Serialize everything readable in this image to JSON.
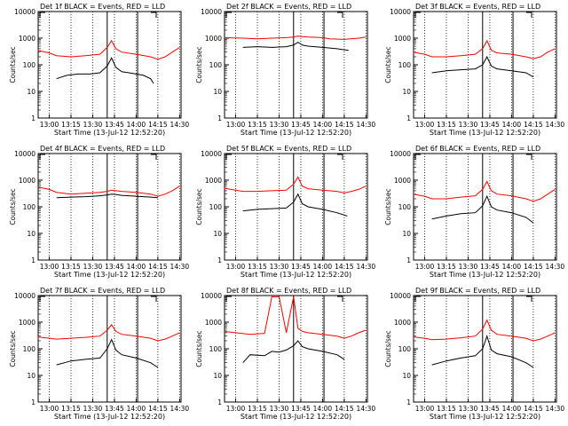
{
  "colors": {
    "events": "#000000",
    "lld": "#ff0000",
    "axis": "#000000"
  },
  "chart_data": {
    "type": "line",
    "scale_y": "log",
    "ylim": [
      1,
      10000
    ],
    "yticks": [
      "1",
      "10",
      "100",
      "1000",
      "10000"
    ],
    "xticks": [
      "13:00",
      "13:15",
      "13:30",
      "13:45",
      "14:00",
      "14:15",
      "14:30"
    ],
    "xlabel": "Start Time (13-Jul-12 12:52:20)",
    "ylabel": "Counts/sec",
    "markers": [
      "13:40",
      "14:01"
    ],
    "panels": [
      {
        "title": "Det 1f BLACK = Events, RED = LLD",
        "series": [
          {
            "name": "Events",
            "x": [
              "13:05",
              "13:12",
              "13:20",
              "13:28",
              "13:35",
              "13:40",
              "13:43",
              "13:46",
              "13:50",
              "13:55",
              "14:00",
              "14:05",
              "14:10",
              "14:12"
            ],
            "y": [
              30,
              40,
              45,
              45,
              50,
              90,
              180,
              80,
              55,
              50,
              45,
              40,
              30,
              20
            ]
          },
          {
            "name": "LLD",
            "x": [
              "12:52",
              "13:00",
              "13:05",
              "13:15",
              "13:25",
              "13:35",
              "13:40",
              "13:43",
              "13:46",
              "13:50",
              "14:00",
              "14:10",
              "14:15",
              "14:20",
              "14:25",
              "14:30"
            ],
            "y": [
              350,
              280,
              220,
              200,
              220,
              250,
              450,
              800,
              400,
              300,
              250,
              200,
              160,
              200,
              300,
              450
            ]
          }
        ]
      },
      {
        "title": "Det 2f BLACK = Events, RED = LLD",
        "series": [
          {
            "name": "Events",
            "x": [
              "13:05",
              "13:15",
              "13:25",
              "13:35",
              "13:40",
              "13:43",
              "13:46",
              "13:50",
              "14:00",
              "14:10",
              "14:18"
            ],
            "y": [
              450,
              480,
              450,
              480,
              550,
              700,
              550,
              500,
              450,
              400,
              350
            ]
          },
          {
            "name": "LLD",
            "x": [
              "12:52",
              "13:05",
              "13:15",
              "13:25",
              "13:35",
              "13:40",
              "13:43",
              "13:46",
              "13:50",
              "14:00",
              "14:05",
              "14:15",
              "14:25",
              "14:30"
            ],
            "y": [
              1050,
              1000,
              950,
              1000,
              1050,
              1100,
              1200,
              1150,
              1100,
              1050,
              950,
              900,
              1000,
              1100
            ]
          }
        ]
      },
      {
        "title": "Det 3f BLACK = Events, RED = LLD",
        "series": [
          {
            "name": "Events",
            "x": [
              "13:05",
              "13:15",
              "13:25",
              "13:35",
              "13:40",
              "13:43",
              "13:46",
              "13:50",
              "14:00",
              "14:10",
              "14:15"
            ],
            "y": [
              50,
              60,
              65,
              70,
              100,
              200,
              90,
              70,
              60,
              50,
              35
            ]
          },
          {
            "name": "LLD",
            "x": [
              "12:52",
              "13:00",
              "13:05",
              "13:15",
              "13:25",
              "13:35",
              "13:40",
              "13:43",
              "13:46",
              "13:50",
              "14:00",
              "14:10",
              "14:15",
              "14:20",
              "14:25",
              "14:30"
            ],
            "y": [
              300,
              250,
              200,
              200,
              220,
              250,
              400,
              800,
              350,
              280,
              250,
              200,
              170,
              200,
              300,
              400
            ]
          }
        ]
      },
      {
        "title": "Det 4f BLACK = Events, RED = LLD",
        "series": [
          {
            "name": "Events",
            "x": [
              "13:05",
              "13:15",
              "13:25",
              "13:35",
              "13:40",
              "13:43",
              "13:46",
              "13:50",
              "14:00",
              "14:10",
              "14:15"
            ],
            "y": [
              220,
              230,
              240,
              260,
              280,
              300,
              290,
              270,
              250,
              230,
              220
            ]
          },
          {
            "name": "LLD",
            "x": [
              "12:52",
              "13:00",
              "13:05",
              "13:15",
              "13:25",
              "13:35",
              "13:40",
              "13:43",
              "13:46",
              "13:50",
              "14:00",
              "14:10",
              "14:15",
              "14:20",
              "14:25",
              "14:30"
            ],
            "y": [
              550,
              450,
              350,
              300,
              320,
              350,
              380,
              420,
              400,
              380,
              350,
              300,
              250,
              300,
              400,
              600
            ]
          }
        ]
      },
      {
        "title": "Det 5f BLACK = Events, RED = LLD",
        "series": [
          {
            "name": "Events",
            "x": [
              "13:05",
              "13:15",
              "13:25",
              "13:35",
              "13:40",
              "13:43",
              "13:46",
              "13:50",
              "14:00",
              "14:10",
              "14:17"
            ],
            "y": [
              70,
              80,
              85,
              90,
              150,
              300,
              130,
              100,
              80,
              60,
              45
            ]
          },
          {
            "name": "LLD",
            "x": [
              "12:52",
              "13:00",
              "13:05",
              "13:15",
              "13:25",
              "13:35",
              "13:40",
              "13:43",
              "13:46",
              "13:50",
              "14:00",
              "14:10",
              "14:15",
              "14:20",
              "14:25",
              "14:30"
            ],
            "y": [
              500,
              420,
              380,
              380,
              400,
              420,
              700,
              1300,
              600,
              480,
              420,
              380,
              330,
              380,
              450,
              600
            ]
          }
        ]
      },
      {
        "title": "Det 6f BLACK = Events, RED = LLD",
        "series": [
          {
            "name": "Events",
            "x": [
              "13:05",
              "13:15",
              "13:25",
              "13:35",
              "13:40",
              "13:43",
              "13:46",
              "13:50",
              "14:00",
              "14:10",
              "14:15"
            ],
            "y": [
              35,
              45,
              55,
              60,
              110,
              250,
              100,
              75,
              60,
              40,
              25
            ]
          },
          {
            "name": "LLD",
            "x": [
              "12:52",
              "13:00",
              "13:05",
              "13:15",
              "13:25",
              "13:35",
              "13:40",
              "13:43",
              "13:46",
              "13:50",
              "14:00",
              "14:10",
              "14:15",
              "14:20",
              "14:25",
              "14:30"
            ],
            "y": [
              300,
              250,
              200,
              200,
              230,
              260,
              450,
              900,
              400,
              300,
              260,
              200,
              160,
              200,
              300,
              450
            ]
          }
        ]
      },
      {
        "title": "Det 7f BLACK = Events, RED = LLD",
        "series": [
          {
            "name": "Events",
            "x": [
              "13:05",
              "13:15",
              "13:25",
              "13:35",
              "13:40",
              "13:43",
              "13:46",
              "13:50",
              "14:00",
              "14:10",
              "14:15"
            ],
            "y": [
              25,
              35,
              40,
              45,
              100,
              220,
              90,
              60,
              45,
              30,
              20
            ]
          },
          {
            "name": "LLD",
            "x": [
              "12:52",
              "13:00",
              "13:05",
              "13:15",
              "13:25",
              "13:35",
              "13:40",
              "13:43",
              "13:46",
              "13:50",
              "14:00",
              "14:10",
              "14:15",
              "14:20",
              "14:25",
              "14:30"
            ],
            "y": [
              280,
              250,
              230,
              250,
              270,
              300,
              500,
              800,
              450,
              350,
              300,
              250,
              200,
              230,
              300,
              400
            ]
          }
        ]
      },
      {
        "title": "Det 8f BLACK = Events, RED = LLD",
        "series": [
          {
            "name": "Events",
            "x": [
              "13:05",
              "13:10",
              "13:20",
              "13:25",
              "13:30",
              "13:35",
              "13:40",
              "13:43",
              "13:46",
              "13:50",
              "14:00",
              "14:10",
              "14:15"
            ],
            "y": [
              30,
              60,
              55,
              80,
              75,
              90,
              130,
              200,
              120,
              100,
              80,
              60,
              40
            ]
          },
          {
            "name": "LLD",
            "x": [
              "12:52",
              "13:00",
              "13:10",
              "13:20",
              "13:25",
              "13:30",
              "13:35",
              "13:40",
              "13:43",
              "13:46",
              "13:50",
              "14:00",
              "14:10",
              "14:15",
              "14:20",
              "14:25",
              "14:30"
            ],
            "y": [
              450,
              400,
              350,
              380,
              9000,
              9000,
              400,
              9000,
              600,
              450,
              400,
              350,
              300,
              250,
              300,
              400,
              500
            ]
          }
        ]
      },
      {
        "title": "Det 9f BLACK = Events, RED = LLD",
        "series": [
          {
            "name": "Events",
            "x": [
              "13:05",
              "13:15",
              "13:25",
              "13:35",
              "13:40",
              "13:43",
              "13:46",
              "13:50",
              "14:00",
              "14:10",
              "14:15"
            ],
            "y": [
              25,
              35,
              45,
              55,
              100,
              300,
              90,
              65,
              50,
              30,
              20
            ]
          },
          {
            "name": "LLD",
            "x": [
              "12:52",
              "13:00",
              "13:05",
              "13:15",
              "13:25",
              "13:35",
              "13:40",
              "13:43",
              "13:46",
              "13:50",
              "14:00",
              "14:10",
              "14:15",
              "14:20",
              "14:25",
              "14:30"
            ],
            "y": [
              280,
              250,
              220,
              230,
              260,
              300,
              550,
              1200,
              500,
              350,
              300,
              250,
              200,
              230,
              300,
              400
            ]
          }
        ]
      }
    ]
  }
}
